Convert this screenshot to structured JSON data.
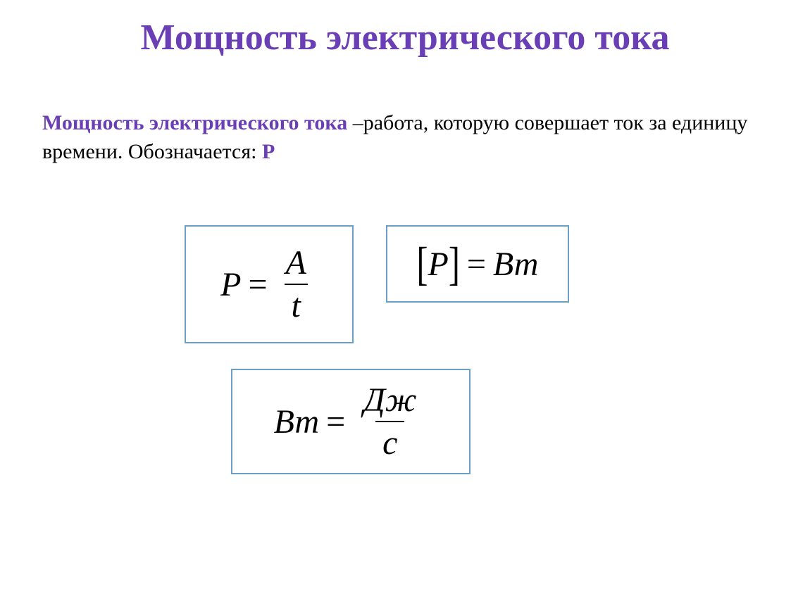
{
  "title": "Мощность электрического тока",
  "definition": {
    "lead": "Мощность электрического тока",
    "body1": " –работа, которую совершает ток за единицу времени. Обозначается: ",
    "symbol": "P"
  },
  "formulas": {
    "formula1": {
      "lhs": "P",
      "eq": "=",
      "numerator": "A",
      "denominator": "t",
      "fontsize": 48,
      "border_color": "#6aa0c6"
    },
    "formula2": {
      "bracket_open": "[",
      "inside": "P",
      "bracket_close": "]",
      "eq": "=",
      "rhs": "Вт",
      "fontsize": 48,
      "border_color": "#6aa0c6"
    },
    "formula3": {
      "lhs": "Вт",
      "eq": "=",
      "numerator": "Дж",
      "denominator": "с",
      "fontsize": 48,
      "border_color": "#6aa0c6"
    }
  },
  "style": {
    "title_color": "#6a3fb5",
    "title_fontsize": 52,
    "body_fontsize": 30,
    "text_color": "#000000",
    "background_color": "#ffffff",
    "box_border_color": "#6aa0c6",
    "box_border_width": 2
  }
}
